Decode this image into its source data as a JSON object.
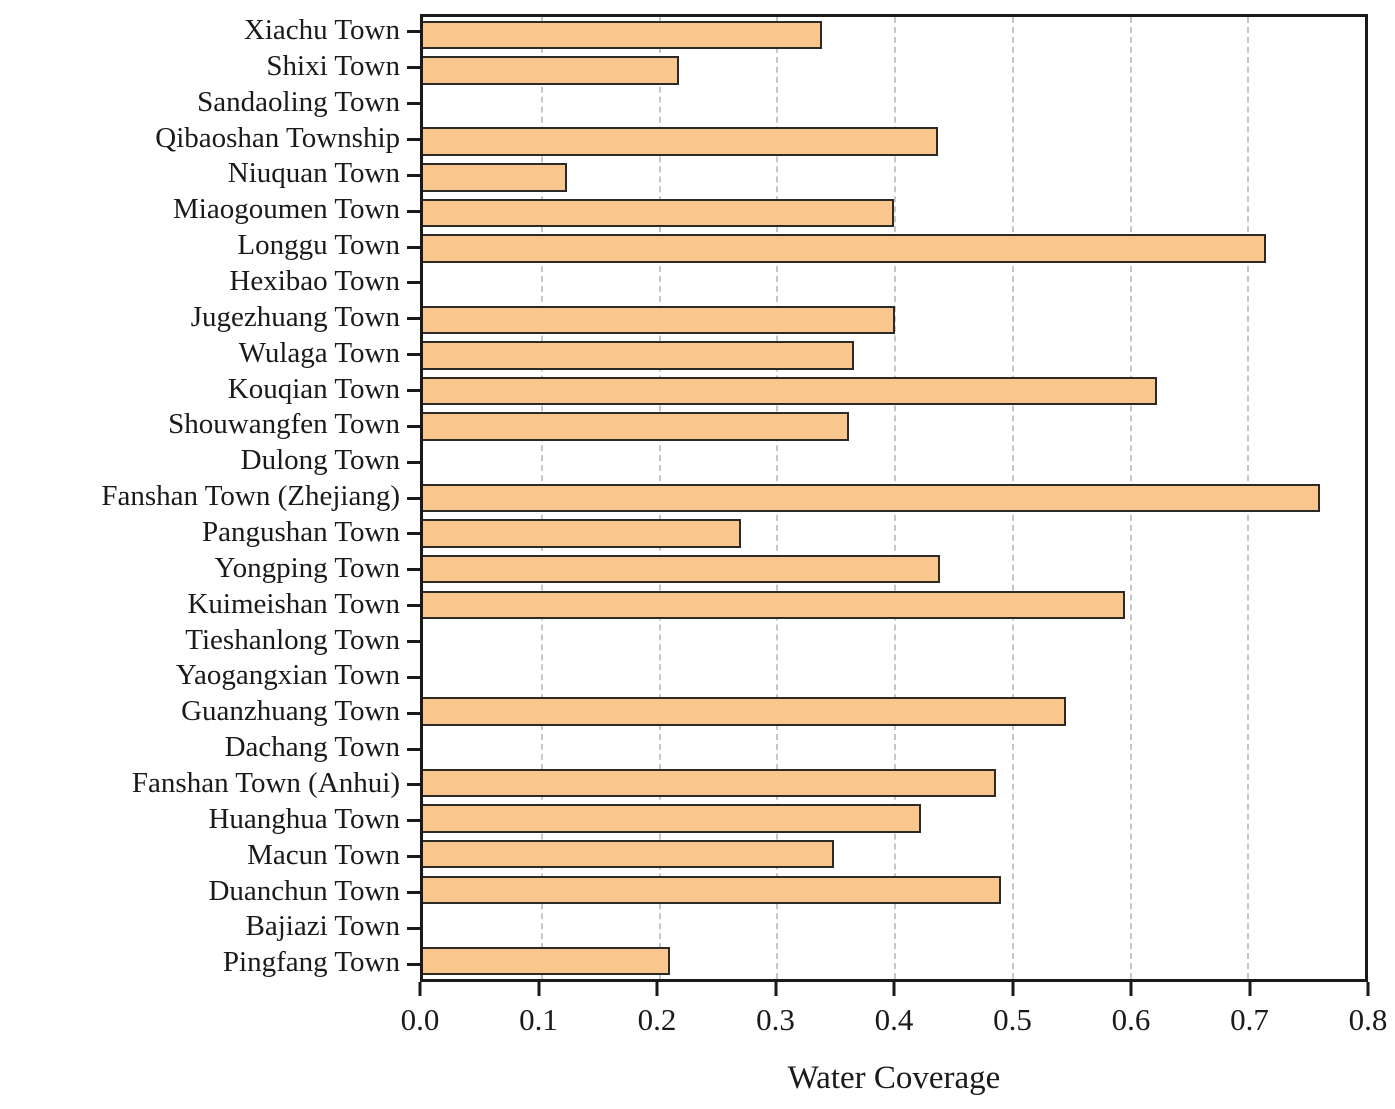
{
  "figure": {
    "background": "#ffffff",
    "text_color": "#1a1a1a",
    "spine_color": "#1a1a1a"
  },
  "chart_data": {
    "type": "bar",
    "orientation": "horizontal",
    "title": "",
    "xlabel": "Water Coverage",
    "ylabel": "",
    "xlim": [
      0.0,
      0.8
    ],
    "x_tick_labels": [
      "0.0",
      "0.1",
      "0.2",
      "0.3",
      "0.4",
      "0.5",
      "0.6",
      "0.7",
      "0.8"
    ],
    "grid": {
      "axis": "x",
      "style": "dashed",
      "color": "#c6c6c6",
      "positions": [
        0.1,
        0.2,
        0.3,
        0.4,
        0.5,
        0.6,
        0.7
      ]
    },
    "bar_color": "#F9C68E",
    "bar_border_color": "#2d2a26",
    "categories": [
      "Xiachu Town",
      "Shixi Town",
      "Sandaoling Town",
      "Qibaoshan Township",
      "Niuquan Town",
      "Miaogoumen Town",
      "Longgu Town",
      "Hexibao Town",
      "Jugezhuang Town",
      "Wulaga Town",
      "Kouqian Town",
      "Shouwangfen Town",
      "Dulong Town",
      "Fanshan Town (Zhejiang)",
      "Pangushan Town",
      "Yongping Town",
      "Kuimeishan Town",
      "Tieshanlong Town",
      "Yaogangxian Town",
      "Guanzhuang Town",
      "Dachang Town",
      "Fanshan Town (Anhui)",
      "Huanghua Town",
      "Macun Town",
      "Duanchun Town",
      "Bajiazi Town",
      "Pingfang Town"
    ],
    "values": [
      0.339,
      0.217,
      0,
      0.437,
      0.122,
      0.4,
      0.716,
      0,
      0.401,
      0.366,
      0.623,
      0.362,
      0,
      0.762,
      0.27,
      0.439,
      0.596,
      0,
      0,
      0.546,
      0,
      0.487,
      0.423,
      0.349,
      0.491,
      0,
      0.21
    ]
  }
}
